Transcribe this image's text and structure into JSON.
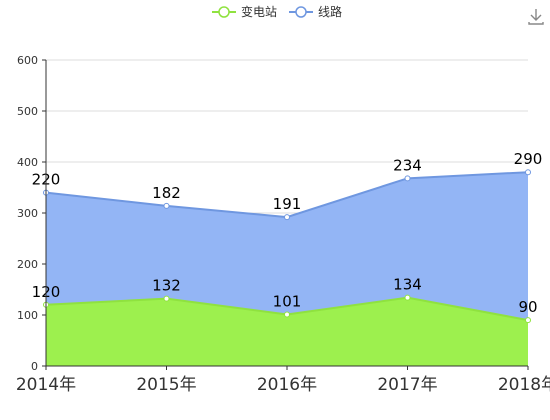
{
  "toolbar": {
    "download_icon": "download-icon"
  },
  "chart_data": {
    "type": "area",
    "stacked": true,
    "categories": [
      "2014年",
      "2015年",
      "2016年",
      "2017年",
      "2018年"
    ],
    "series": [
      {
        "name": "变电站",
        "values": [
          120,
          132,
          101,
          134,
          90
        ],
        "color": "#9bf04a",
        "line_color": "#8fe23f"
      },
      {
        "name": "线路",
        "values": [
          220,
          182,
          191,
          234,
          290
        ],
        "color": "#91b4f5",
        "line_color": "#6f97e0"
      }
    ],
    "y_ticks": [
      "0",
      "100",
      "200",
      "300",
      "400",
      "500",
      "600"
    ],
    "ylim": [
      0,
      600
    ],
    "grid": true,
    "legend_position": "top-center"
  }
}
